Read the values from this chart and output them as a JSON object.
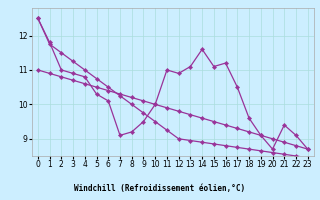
{
  "x": [
    0,
    1,
    2,
    3,
    4,
    5,
    6,
    7,
    8,
    9,
    10,
    11,
    12,
    13,
    14,
    15,
    16,
    17,
    18,
    19,
    20,
    21,
    22,
    23
  ],
  "y_main": [
    12.5,
    11.8,
    11.0,
    10.9,
    10.8,
    10.3,
    10.1,
    9.1,
    9.2,
    9.5,
    10.0,
    11.0,
    10.9,
    11.1,
    11.6,
    11.1,
    11.2,
    10.5,
    9.6,
    9.1,
    8.7,
    9.4,
    9.1,
    8.7
  ],
  "y_line1": [
    12.5,
    11.75,
    11.5,
    11.25,
    11.0,
    10.75,
    10.5,
    10.25,
    10.0,
    9.75,
    9.5,
    9.25,
    9.0,
    8.95,
    8.9,
    8.85,
    8.8,
    8.75,
    8.7,
    8.65,
    8.6,
    8.55,
    8.5,
    8.45
  ],
  "y_line2": [
    11.0,
    10.9,
    10.8,
    10.7,
    10.6,
    10.5,
    10.4,
    10.3,
    10.2,
    10.1,
    10.0,
    9.9,
    9.8,
    9.7,
    9.6,
    9.5,
    9.4,
    9.3,
    9.2,
    9.1,
    9.0,
    8.9,
    8.8,
    8.7
  ],
  "line_color": "#993399",
  "bg_color": "#cceeff",
  "grid_color": "#aadddd",
  "xlabel_bg": "#9999cc",
  "xlabel": "Windchill (Refroidissement éolien,°C)",
  "ylim": [
    8.5,
    12.8
  ],
  "xlim": [
    -0.5,
    23.5
  ],
  "yticks": [
    9,
    10,
    11,
    12
  ],
  "xticks": [
    0,
    1,
    2,
    3,
    4,
    5,
    6,
    7,
    8,
    9,
    10,
    11,
    12,
    13,
    14,
    15,
    16,
    17,
    18,
    19,
    20,
    21,
    22,
    23
  ],
  "marker": "D",
  "markersize": 2.2,
  "linewidth": 0.9,
  "tick_fontsize": 5.5,
  "xlabel_fontsize": 5.5,
  "ylabel_fontsize": 6
}
